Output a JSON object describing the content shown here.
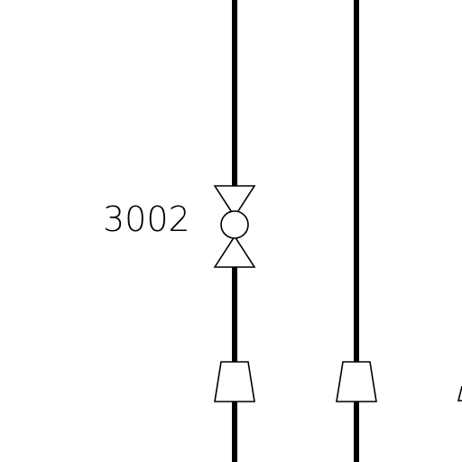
{
  "diagram": {
    "type": "piping-instrumentation-fragment",
    "valve": {
      "tag": "3002",
      "symbol": "globe-valve-icon"
    },
    "reducers": [
      {
        "symbol": "reducer-icon"
      },
      {
        "symbol": "reducer-icon"
      }
    ],
    "pipes": [
      {
        "id": "pipe-left"
      },
      {
        "id": "pipe-right"
      }
    ],
    "colors": {
      "line": "#000000",
      "background": "#ffffff"
    }
  }
}
